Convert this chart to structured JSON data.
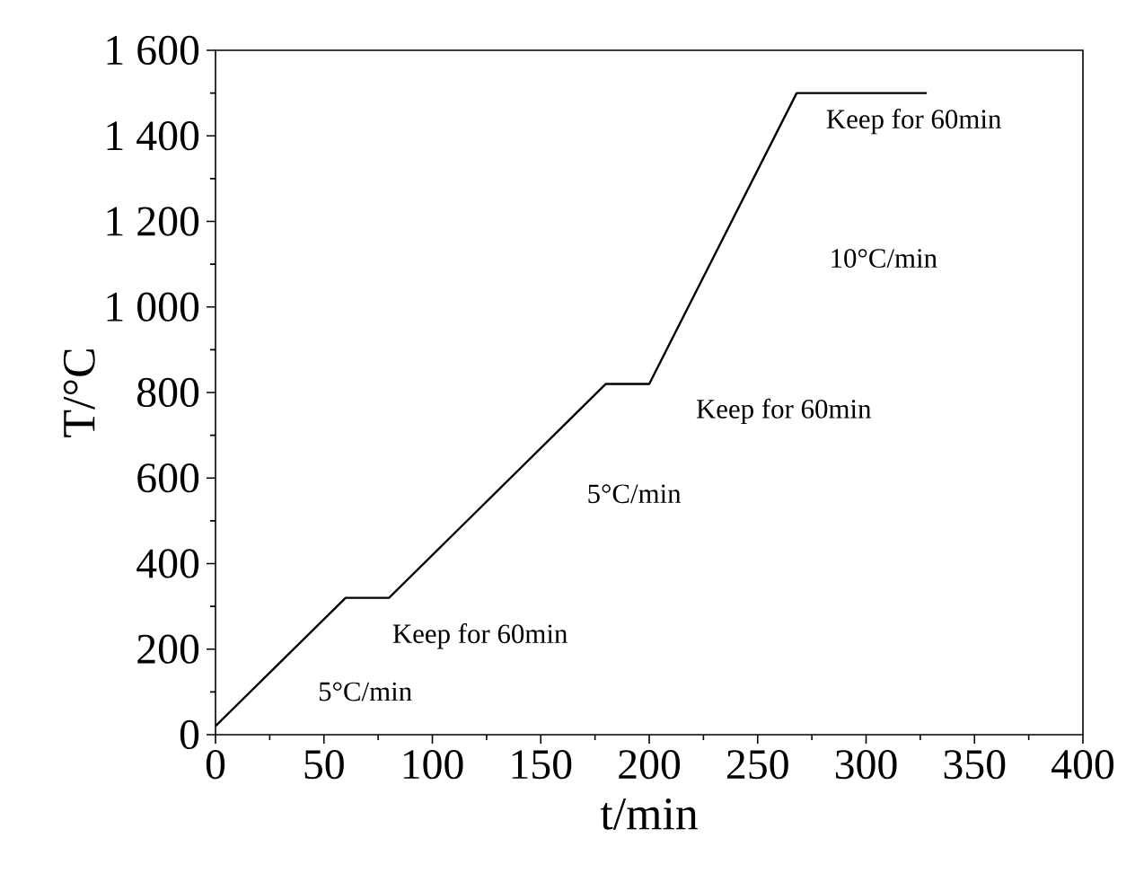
{
  "chart_data": {
    "type": "line",
    "xlabel": "t/min",
    "ylabel": "T/°C",
    "x": [
      0,
      60,
      80,
      180,
      200,
      268,
      328
    ],
    "series": [
      {
        "color": "#000000",
        "values": [
          20,
          320,
          320,
          820,
          820,
          1500,
          1500
        ]
      }
    ],
    "xlim": [
      0,
      400
    ],
    "xticks": [
      0,
      50,
      100,
      150,
      200,
      250,
      300,
      350,
      400
    ],
    "ylim": [
      0,
      1600
    ],
    "yticks": [
      0,
      200,
      400,
      600,
      800,
      {
        "value": 1000,
        "label": "1 000"
      },
      {
        "value": 1200,
        "label": "1 200"
      },
      {
        "value": 1400,
        "label": "1 400"
      },
      {
        "value": 1600,
        "label": "1 600"
      }
    ],
    "marker": "none",
    "line_style": "solid",
    "annotations": [
      "Keep for 60min",
      "10°C/min",
      "Keep for 60min",
      "5°C/min",
      "Keep for 60min",
      "5°C/min"
    ]
  }
}
